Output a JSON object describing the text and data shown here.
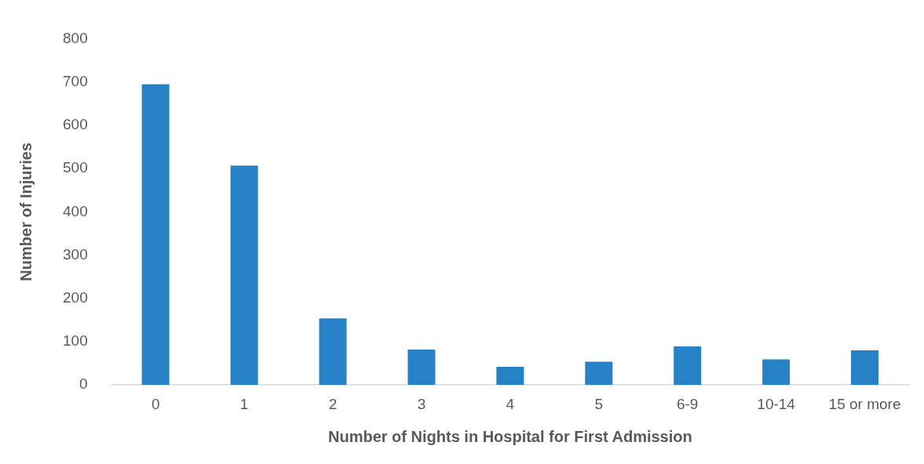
{
  "chart_data": {
    "type": "bar",
    "xlabel": "Number of Nights in Hospital for First Admission",
    "ylabel": "Number of Injuries",
    "categories": [
      "0",
      "1",
      "2",
      "3",
      "4",
      "5",
      "6-9",
      "10-14",
      "15 or more"
    ],
    "values": [
      695,
      507,
      154,
      82,
      42,
      54,
      89,
      59,
      80
    ],
    "color": "#2781c6",
    "ylim": [
      0,
      800
    ],
    "yticks": [
      0,
      100,
      200,
      300,
      400,
      500,
      600,
      700,
      800
    ],
    "grid": false,
    "legend": false
  }
}
